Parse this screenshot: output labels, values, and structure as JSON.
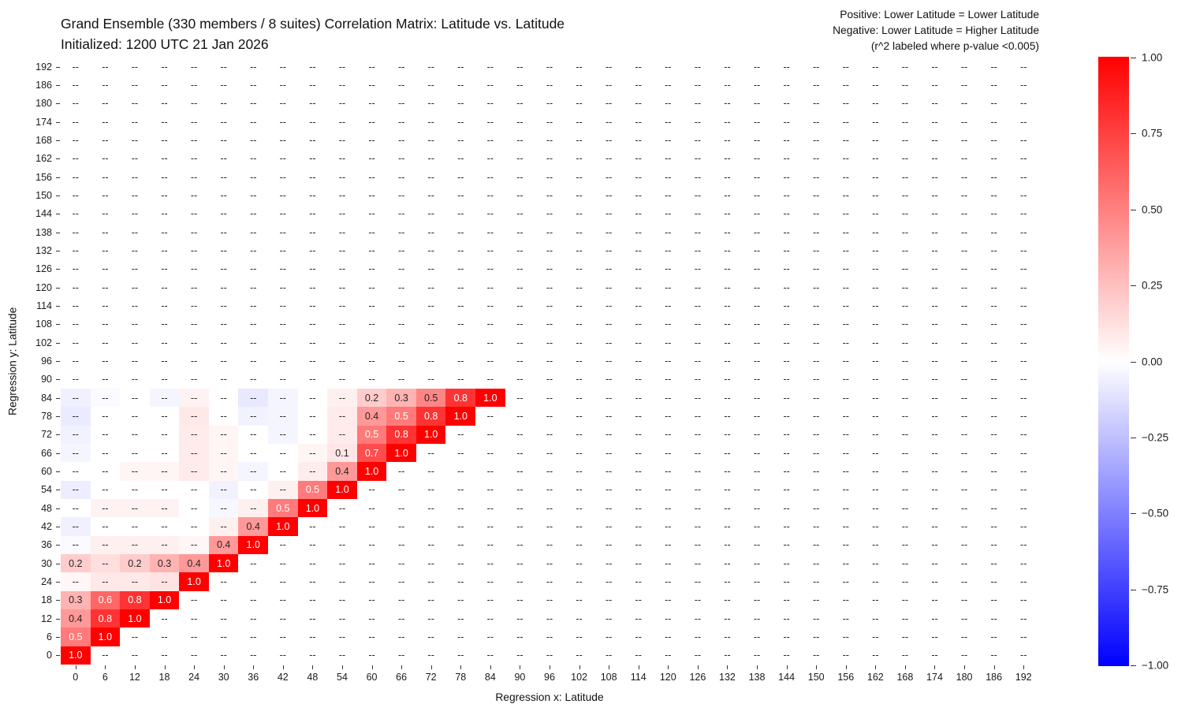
{
  "page": {
    "background": "#ffffff",
    "text_color": "#1a1a1a"
  },
  "header": {
    "title_line1": "Grand Ensemble (330 members / 8 suites) Correlation Matrix: Latitude vs. Latitude",
    "title_line2": "Initialized: 1200 UTC 21 Jan 2026"
  },
  "header_right": {
    "lines": [
      "Positive: Lower Latitude = Lower Latitude",
      "Negative: Lower Latitude = Higher Latitude",
      "(r^2 labeled where p-value <0.005)"
    ]
  },
  "chart_data": {
    "type": "heatmap",
    "title": "Grand Ensemble (330 members / 8 suites) Correlation Matrix: Latitude vs. Latitude",
    "subtitle": "Initialized: 1200 UTC 21 Jan 2026",
    "xlabel": "Regression x: Latitude",
    "ylabel": "Regression y: Latitude",
    "x_ticks": [
      0,
      6,
      12,
      18,
      24,
      30,
      36,
      42,
      48,
      54,
      60,
      66,
      72,
      78,
      84,
      90,
      96,
      102,
      108,
      114,
      120,
      126,
      132,
      138,
      144,
      150,
      156,
      162,
      168,
      174,
      180,
      186,
      192
    ],
    "y_ticks_top_to_bottom": [
      192,
      186,
      180,
      174,
      168,
      162,
      156,
      150,
      144,
      138,
      132,
      126,
      120,
      114,
      108,
      102,
      96,
      90,
      84,
      78,
      72,
      66,
      60,
      54,
      48,
      42,
      36,
      30,
      24,
      18,
      12,
      6,
      0
    ],
    "vmin": -1,
    "vmax": 1,
    "colormap": "blue-white-red",
    "no_data_marker": "--",
    "label_white_text_threshold": 0.5,
    "colorbar": {
      "ticks": [
        "1.00",
        "0.75",
        "0.50",
        "0.25",
        "0.00",
        "−0.25",
        "−0.50",
        "−0.75",
        "−1.00"
      ],
      "top_color": "#ff0000",
      "mid_color": "#ffffff",
      "bottom_color": "#0000ff"
    },
    "rows": [
      {
        "y": 84,
        "values": [
          -0.06,
          -0.02,
          0,
          -0.04,
          0.05,
          0,
          -0.09,
          -0.04,
          0,
          0.06,
          0.2,
          0.3,
          0.48,
          0.8,
          1.0
        ],
        "labels": [
          null,
          null,
          null,
          null,
          null,
          null,
          null,
          null,
          null,
          null,
          "0.2",
          "0.3",
          "0.5",
          "0.8",
          "1.0"
        ]
      },
      {
        "y": 78,
        "values": [
          -0.08,
          0,
          0,
          0,
          0.09,
          0,
          -0.05,
          -0.04,
          0,
          0.08,
          0.4,
          0.52,
          0.8,
          1.0
        ],
        "labels": [
          null,
          null,
          null,
          null,
          null,
          null,
          null,
          null,
          null,
          null,
          "0.4",
          "0.5",
          "0.8",
          "1.0"
        ]
      },
      {
        "y": 72,
        "values": [
          -0.05,
          0,
          0,
          0,
          0.08,
          0.04,
          0,
          -0.04,
          0,
          0.08,
          0.52,
          0.8,
          1.0
        ],
        "labels": [
          null,
          null,
          null,
          null,
          null,
          null,
          null,
          null,
          null,
          null,
          "0.5",
          "0.8",
          "1.0"
        ]
      },
      {
        "y": 66,
        "values": [
          -0.04,
          0,
          0,
          0,
          0.08,
          0.04,
          0,
          0,
          0.04,
          0.1,
          0.7,
          1.0
        ],
        "labels": [
          null,
          null,
          null,
          null,
          null,
          null,
          null,
          null,
          null,
          "0.1",
          "0.7",
          "1.0"
        ]
      },
      {
        "y": 60,
        "values": [
          0,
          0,
          0.04,
          0.04,
          0.08,
          0.04,
          -0.04,
          0,
          0.07,
          0.4,
          1.0
        ],
        "labels": [
          null,
          null,
          null,
          null,
          null,
          null,
          null,
          null,
          null,
          "0.4",
          "1.0"
        ]
      },
      {
        "y": 54,
        "values": [
          -0.07,
          0,
          0,
          0,
          0,
          -0.05,
          0,
          0.06,
          0.52,
          1.0
        ],
        "labels": [
          null,
          null,
          null,
          null,
          null,
          null,
          null,
          null,
          "0.5",
          "1.0"
        ]
      },
      {
        "y": 48,
        "values": [
          0,
          0.05,
          0.05,
          0.05,
          0,
          -0.03,
          0.06,
          0.52,
          1.0
        ],
        "labels": [
          null,
          null,
          null,
          null,
          null,
          null,
          null,
          "0.5",
          "1.0"
        ]
      },
      {
        "y": 42,
        "values": [
          -0.06,
          0,
          0,
          0,
          0,
          0.06,
          0.4,
          1.0
        ],
        "labels": [
          null,
          null,
          null,
          null,
          null,
          null,
          "0.4",
          "1.0"
        ]
      },
      {
        "y": 36,
        "values": [
          -0.02,
          0.06,
          0.06,
          0.06,
          0.03,
          0.4,
          1.0
        ],
        "labels": [
          null,
          null,
          null,
          null,
          null,
          "0.4",
          "1.0"
        ]
      },
      {
        "y": 30,
        "values": [
          0.2,
          0.13,
          0.2,
          0.3,
          0.4,
          1.0
        ],
        "labels": [
          "0.2",
          null,
          "0.2",
          "0.3",
          "0.4",
          "1.0"
        ]
      },
      {
        "y": 24,
        "values": [
          0.03,
          0.09,
          0.09,
          0.11,
          1.0
        ],
        "labels": [
          null,
          null,
          null,
          null,
          "1.0"
        ]
      },
      {
        "y": 18,
        "values": [
          0.3,
          0.6,
          0.8,
          1.0
        ],
        "labels": [
          "0.3",
          "0.6",
          "0.8",
          "1.0"
        ]
      },
      {
        "y": 12,
        "values": [
          0.4,
          0.8,
          1.0
        ],
        "labels": [
          "0.4",
          "0.8",
          "1.0"
        ]
      },
      {
        "y": 6,
        "values": [
          0.52,
          1.0
        ],
        "labels": [
          "0.5",
          "1.0"
        ]
      },
      {
        "y": 0,
        "values": [
          1.0
        ],
        "labels": [
          "1.0"
        ]
      }
    ]
  }
}
